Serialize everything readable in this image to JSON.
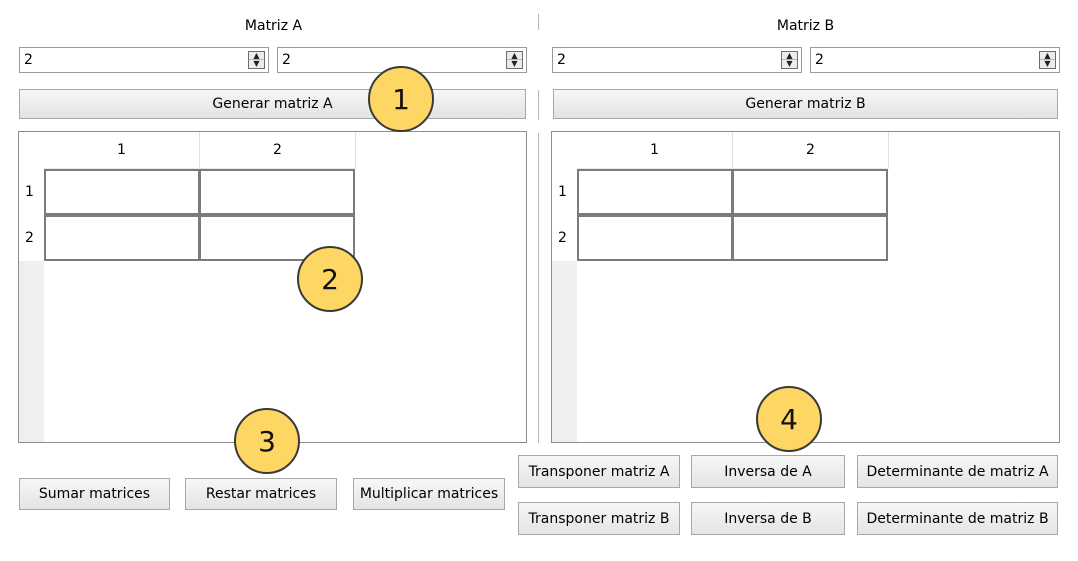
{
  "matrix_a": {
    "title": "Matriz A",
    "rows_value": "2",
    "cols_value": "2",
    "generate_label": "Generar matriz A",
    "col_headers": [
      "1",
      "2"
    ],
    "row_headers": [
      "1",
      "2"
    ]
  },
  "matrix_b": {
    "title": "Matriz B",
    "rows_value": "2",
    "cols_value": "2",
    "generate_label": "Generar matriz B",
    "col_headers": [
      "1",
      "2"
    ],
    "row_headers": [
      "1",
      "2"
    ]
  },
  "operations": {
    "sumar": "Sumar matrices",
    "restar": "Restar matrices",
    "multiplicar": "Multiplicar matrices",
    "transponer_a": "Transponer matriz A",
    "inversa_a": "Inversa de A",
    "determinante_a": "Determinante de matriz A",
    "transponer_b": "Transponer matriz B",
    "inversa_b": "Inversa de B",
    "determinante_b": "Determinante de matriz B"
  },
  "callouts": [
    "1",
    "2",
    "3",
    "4"
  ],
  "colors": {
    "callout_fill": "#fdd663",
    "header_bg": "#efefef"
  },
  "icons": {
    "spin_up": "spin-up-arrow-icon",
    "spin_down": "spin-down-arrow-icon"
  }
}
